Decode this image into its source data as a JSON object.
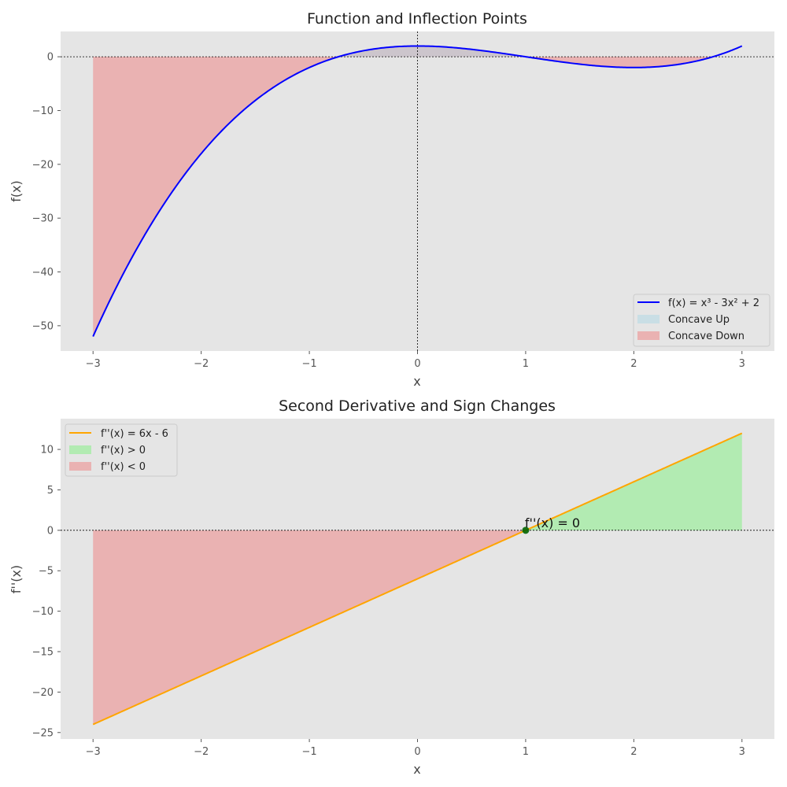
{
  "chart_data": [
    {
      "type": "line",
      "title": "Function and Inflection Points",
      "xlabel": "x",
      "ylabel": "f(x)",
      "xlim": [
        -3.3,
        3.3
      ],
      "ylim": [
        -54.7,
        4.7
      ],
      "xticks": [
        -3,
        -2,
        -1,
        0,
        1,
        2,
        3
      ],
      "yticks": [
        0,
        -10,
        -20,
        -30,
        -40,
        -50
      ],
      "domain": [
        -3,
        3
      ],
      "function": "x^3 - 3x^2 + 2",
      "coefficients": [
        1,
        -3,
        0,
        2
      ],
      "grid": false,
      "reference_lines": {
        "x": 0,
        "y": 0
      },
      "colors": {
        "line": "#0000ff",
        "concave_up": "#add8e6",
        "concave_down": "#f08080",
        "background": "#e5e5e5"
      },
      "legend": {
        "placement": "lower-right",
        "entries": [
          "f(x) = x³ - 3x² + 2",
          "Concave Up",
          "Concave Down"
        ]
      }
    },
    {
      "type": "line",
      "title": "Second Derivative and Sign Changes",
      "xlabel": "x",
      "ylabel": "f''(x)",
      "xlim": [
        -3.3,
        3.3
      ],
      "ylim": [
        -25.8,
        13.8
      ],
      "xticks": [
        -3,
        -2,
        -1,
        0,
        1,
        2,
        3
      ],
      "yticks": [
        10,
        5,
        0,
        -5,
        -10,
        -15,
        -20,
        -25
      ],
      "domain": [
        -3,
        3
      ],
      "function": "6x - 6",
      "coefficients": [
        6,
        -6
      ],
      "grid": false,
      "reference_lines": {
        "y": 0
      },
      "zero_point": {
        "x": 1,
        "y": 0,
        "label": "f''(x) = 0"
      },
      "colors": {
        "line": "#ffa500",
        "positive": "#90ee90",
        "negative": "#f08080",
        "point": "#006400",
        "background": "#e5e5e5"
      },
      "legend": {
        "placement": "upper-left",
        "entries": [
          "f''(x) = 6x - 6",
          "f''(x) > 0",
          "f''(x) < 0"
        ]
      }
    }
  ]
}
